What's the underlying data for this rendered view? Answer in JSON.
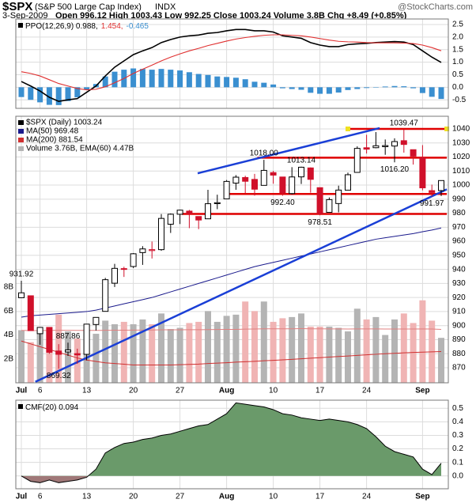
{
  "header": {
    "symbol": "$SPX",
    "name": "(S&P 500 Large Cap Index)",
    "exchange": "INDX",
    "source": "@StockCharts.com",
    "date": "3-Sep-2009",
    "quote": "Open 996.12 High 1003.43 Low 992.25 Close 1003.24 Volume 3.8B Chg +8.49 (+0.85%)"
  },
  "chart_data": [
    {
      "type": "line",
      "grid": true,
      "ylim": [
        -0.84,
        2.72
      ],
      "yticks": [
        -0.5,
        {
          "value": 0,
          "label": "0.0"
        },
        0.5,
        {
          "value": 1,
          "label": "1.0"
        },
        1.5,
        {
          "value": 2,
          "label": "2.0"
        },
        2.5
      ],
      "series": [
        {
          "name": "PPO(12,26,9) 0.988,",
          "color": "#000000",
          "kind": "line",
          "values": [
            0.23,
            0.05,
            -0.15,
            -0.4,
            -0.56,
            -0.5,
            -0.45,
            -0.2,
            0.05,
            0.45,
            0.8,
            1.05,
            1.3,
            1.45,
            1.58,
            1.78,
            1.9,
            2.0,
            2.05,
            2.08,
            2.15,
            2.18,
            2.25,
            2.3,
            2.3,
            2.25,
            2.25,
            2.2,
            2.05,
            2.0,
            1.95,
            1.78,
            1.68,
            1.62,
            1.62,
            1.7,
            1.73,
            1.75,
            1.78,
            1.8,
            1.82,
            1.8,
            1.7,
            1.45,
            1.2,
            0.988
          ]
        },
        {
          "name": "1.454,",
          "color": "#e03030",
          "kind": "line",
          "values": [
            0.62,
            0.55,
            0.45,
            0.3,
            0.15,
            0.05,
            -0.05,
            -0.1,
            -0.08,
            0.02,
            0.18,
            0.35,
            0.55,
            0.72,
            0.88,
            1.05,
            1.2,
            1.33,
            1.45,
            1.55,
            1.66,
            1.75,
            1.84,
            1.92,
            1.98,
            2.03,
            2.07,
            2.09,
            2.09,
            2.07,
            2.05,
            2.0,
            1.94,
            1.88,
            1.83,
            1.81,
            1.8,
            1.78,
            1.77,
            1.77,
            1.77,
            1.76,
            1.74,
            1.68,
            1.58,
            1.454
          ]
        },
        {
          "name": "-0.465",
          "color": "#3a8fd0",
          "kind": "bar",
          "values": [
            -0.39,
            -0.5,
            -0.6,
            -0.7,
            -0.71,
            -0.55,
            -0.4,
            -0.1,
            0.13,
            0.43,
            0.62,
            0.7,
            0.75,
            0.73,
            0.7,
            0.73,
            0.7,
            0.67,
            0.6,
            0.53,
            0.49,
            0.43,
            0.41,
            0.38,
            0.32,
            0.22,
            0.18,
            0.11,
            -0.04,
            -0.07,
            -0.1,
            -0.22,
            -0.26,
            -0.26,
            -0.21,
            -0.11,
            -0.07,
            -0.03,
            0.01,
            0.03,
            0.05,
            0.04,
            -0.04,
            -0.23,
            -0.38,
            -0.465
          ]
        }
      ]
    },
    {
      "type": "candlestick",
      "grid": true,
      "ylim": [
        859.3,
        1049
      ],
      "yticks": [
        870,
        880,
        890,
        900,
        910,
        920,
        930,
        940,
        950,
        960,
        970,
        980,
        990,
        1000,
        1010,
        1020,
        1030,
        1040
      ],
      "y2lim": [
        0,
        22.3
      ],
      "y2ticks": [
        {
          "value": 2,
          "label": "2B"
        },
        {
          "value": 4,
          "label": "4B"
        },
        {
          "value": 6,
          "label": "6B"
        },
        {
          "value": 8,
          "label": "8B"
        }
      ],
      "categories": [
        "Jul",
        null,
        "6",
        null,
        null,
        null,
        null,
        "13",
        null,
        null,
        null,
        null,
        "20",
        null,
        null,
        null,
        null,
        "27",
        null,
        null,
        null,
        null,
        "Aug",
        null,
        null,
        null,
        null,
        "10",
        null,
        null,
        null,
        null,
        "17",
        null,
        null,
        null,
        null,
        "24",
        null,
        null,
        null,
        null,
        null,
        "Sep",
        null,
        null
      ],
      "up_color": "#000000",
      "down_color": "#d0102a",
      "series": [
        {
          "name": "$SPX (Daily) 1003.24",
          "type": "candlestick",
          "open": [
            919.82,
            921.24,
            894.27,
            898.6,
            881.9,
            881.28,
            880.03,
            879.57,
            900.77,
            910.15,
            930.17,
            940.56,
            942.07,
            951.97,
            953.4,
            954.07,
            972.16,
            979.26,
            981.48,
            977.66,
            976.01,
            986.8,
            990.22,
            1001.41,
            1005.41,
            1004.06,
            999.83,
            1008.89,
            1005.77,
            994.0,
            1005.86,
            1012.23,
            998.18,
            980.62,
            986.88,
            996.41,
            1009.06,
            1026.59,
            1026.63,
            1027.35,
            1027.81,
            1031.62,
            1025.21,
            1019.52,
            996.07,
            996.12
          ],
          "high": [
            931.92,
            921.24,
            898.72,
            898.6,
            886.8,
            887.86,
            883.57,
            901.05,
            905.84,
            933.95,
            943.96,
            941.89,
            951.62,
            956.53,
            959.83,
            979.42,
            979.79,
            982.49,
            982.35,
            977.76,
            996.68,
            993.18,
            1003.61,
            1007.12,
            1006.64,
            1008.0,
            1018.0,
            1010.12,
            1005.77,
            1012.78,
            1013.14,
            1012.6,
            998.18,
            991.2,
            999.61,
            1008.92,
            1027.59,
            1035.82,
            1037.75,
            1032.47,
            1033.33,
            1039.47,
            1025.21,
            1028.45,
            1000.34,
            1003.43
          ],
          "low": [
            919.82,
            896.42,
            886.36,
            879.93,
            869.32,
            878.45,
            872.81,
            875.32,
            896.5,
            910.15,
            927.45,
            934.65,
            940.99,
            943.22,
            947.75,
            953.27,
            965.95,
            972.29,
            969.35,
            968.65,
            976.01,
            982.85,
            990.22,
            996.68,
            994.31,
            992.49,
            999.83,
            1000.99,
            992.4,
            993.36,
            1000.82,
            994.6,
            978.51,
            980.62,
            980.62,
            996.39,
            1009.06,
            1022.48,
            1026.21,
            1021.57,
            1016.2,
            1023.13,
            1014.62,
            996.28,
            991.97,
            992.25
          ],
          "close": [
            923.33,
            896.42,
            898.72,
            881.03,
            879.56,
            882.68,
            879.13,
            901.05,
            905.84,
            932.68,
            940.74,
            940.38,
            951.13,
            954.58,
            954.07,
            976.29,
            979.26,
            982.18,
            979.62,
            975.15,
            986.75,
            987.48,
            1002.63,
            1005.65,
            1002.72,
            997.08,
            1010.48,
            1007.1,
            994.35,
            1005.81,
            1012.73,
            1004.09,
            979.73,
            989.67,
            996.46,
            1007.37,
            1026.13,
            1025.57,
            1028.0,
            1028.12,
            1030.98,
            1028.93,
            1020.62,
            998.04,
            994.75,
            1003.24
          ]
        },
        {
          "name": "MA(50) 969.48",
          "type": "line",
          "color": "#1a1a8c",
          "values": [
            906,
            907,
            907.5,
            908,
            908.5,
            909,
            909.5,
            910,
            911,
            912.5,
            914,
            915.5,
            917,
            918.5,
            920,
            922,
            924,
            926,
            928,
            930,
            932,
            934,
            936,
            938,
            940,
            942,
            943.5,
            945,
            946.5,
            948,
            949.5,
            951,
            952.5,
            954,
            955.5,
            957,
            958.5,
            960,
            961.5,
            962.5,
            963.5,
            964.5,
            965.5,
            966.8,
            968,
            969.48
          ]
        },
        {
          "name": "MA(200) 881.54",
          "type": "line",
          "color": "#d03030",
          "values": [
            889,
            887,
            885,
            883,
            881,
            879,
            877,
            875.5,
            874.5,
            873.5,
            873,
            872.5,
            872,
            872,
            872,
            872,
            872,
            872.2,
            872.4,
            872.6,
            873,
            873.3,
            873.6,
            874,
            874.3,
            874.6,
            875,
            875.3,
            875.6,
            876,
            876.4,
            876.8,
            877.2,
            877.6,
            878,
            878.4,
            878.8,
            879.2,
            879.6,
            880,
            880.3,
            880.6,
            880.9,
            881.1,
            881.3,
            881.54
          ]
        },
        {
          "name": "Volume 3.76B, EMA(60) 4.47B",
          "type": "bar",
          "axis": "y2",
          "color": "#b4b4b4",
          "down_color": "#f0b4b4",
          "values": [
            4.4,
            3.4,
            4.3,
            4.7,
            5.7,
            4.3,
            3.7,
            4.5,
            4.1,
            5.2,
            4.9,
            5.1,
            4.9,
            5.3,
            4.9,
            5.8,
            4.5,
            4.6,
            5.0,
            5.1,
            6.0,
            5.1,
            5.6,
            5.7,
            6.8,
            6.0,
            6.8,
            5.1,
            5.4,
            5.5,
            5.8,
            4.7,
            4.7,
            4.7,
            4.6,
            4.3,
            6.2,
            5.3,
            5.5,
            4.0,
            5.3,
            5.8,
            5.0,
            6.9,
            5.2,
            3.76
          ]
        },
        {
          "type": "line",
          "axis": "y2",
          "color": "#e08080",
          "values": [
            4.38,
            4.37,
            4.37,
            4.38,
            4.39,
            4.39,
            4.38,
            4.38,
            4.38,
            4.39,
            4.4,
            4.4,
            4.41,
            4.41,
            4.42,
            4.43,
            4.43,
            4.43,
            4.44,
            4.44,
            4.45,
            4.46,
            4.47,
            4.47,
            4.49,
            4.5,
            4.52,
            4.52,
            4.52,
            4.52,
            4.53,
            4.52,
            4.52,
            4.51,
            4.51,
            4.5,
            4.51,
            4.51,
            4.51,
            4.5,
            4.5,
            4.5,
            4.5,
            4.51,
            4.5,
            4.47
          ]
        }
      ],
      "lines": [
        {
          "color": "#e00000",
          "points": [
            [
              35,
              1040
            ],
            [
              45.6,
              1040
            ]
          ]
        },
        {
          "color": "#e00000",
          "points": [
            [
              25.3,
              1019.5
            ],
            [
              45.6,
              1019.5
            ]
          ]
        },
        {
          "color": "#e00000",
          "points": [
            [
              21.9,
              993.7
            ],
            [
              45.6,
              993.7
            ]
          ]
        },
        {
          "color": "#e00000",
          "points": [
            [
              17.2,
              979.5
            ],
            [
              45.6,
              979.5
            ]
          ]
        },
        {
          "color": "#1a3fd6",
          "points": [
            [
              18.9,
              1008.4
            ],
            [
              38.4,
              1040.6
            ]
          ]
        },
        {
          "color": "#1a3fd6",
          "points": [
            [
              1.5,
              860
            ],
            [
              45.6,
              997
            ]
          ]
        }
      ],
      "annotations": [
        {
          "label": "931.92",
          "value": 931.92,
          "index": 0
        },
        {
          "label": "887.86",
          "value": 887.86,
          "index": 5
        },
        {
          "label": "869.32",
          "value": 869.32,
          "index": 4
        },
        {
          "label": "1018.00",
          "value": 1018.0,
          "index": 26
        },
        {
          "label": "1013.14",
          "value": 1013.14,
          "index": 30
        },
        {
          "label": "992.40",
          "value": 992.4,
          "index": 28
        },
        {
          "label": "978.51",
          "value": 978.51,
          "index": 32
        },
        {
          "label": "1039.47",
          "value": 1039.47,
          "index": 41
        },
        {
          "label": "1016.20",
          "value": 1016.2,
          "index": 40
        },
        {
          "label": "991.97",
          "value": 991.97,
          "index": 44
        }
      ]
    },
    {
      "type": "area",
      "grid": true,
      "ylim": [
        -0.095,
        0.56
      ],
      "yticks": [
        {
          "value": 0,
          "label": "0.0"
        },
        0.1,
        0.2,
        0.3,
        0.4,
        0.5
      ],
      "categories": [
        "Jul",
        null,
        "6",
        null,
        null,
        null,
        null,
        "13",
        null,
        null,
        null,
        null,
        "20",
        null,
        null,
        null,
        null,
        "27",
        null,
        null,
        null,
        null,
        "Aug",
        null,
        null,
        null,
        null,
        "10",
        null,
        null,
        null,
        null,
        "17",
        null,
        null,
        null,
        null,
        "24",
        null,
        null,
        null,
        null,
        null,
        "Sep",
        null,
        null
      ],
      "series": [
        {
          "name": "CMF(20) 0.094",
          "color": "#6a9a6a",
          "negative_color": "#a07878",
          "line_color": "#000000",
          "values": [
            0.0,
            -0.04,
            -0.05,
            -0.03,
            -0.05,
            -0.04,
            -0.03,
            -0.01,
            0.05,
            0.17,
            0.21,
            0.24,
            0.25,
            0.27,
            0.28,
            0.3,
            0.31,
            0.33,
            0.35,
            0.37,
            0.38,
            0.42,
            0.46,
            0.54,
            0.53,
            0.52,
            0.51,
            0.49,
            0.46,
            0.45,
            0.43,
            0.42,
            0.41,
            0.42,
            0.41,
            0.4,
            0.38,
            0.35,
            0.29,
            0.22,
            0.18,
            0.16,
            0.14,
            0.05,
            0.01,
            0.094
          ]
        }
      ]
    }
  ]
}
